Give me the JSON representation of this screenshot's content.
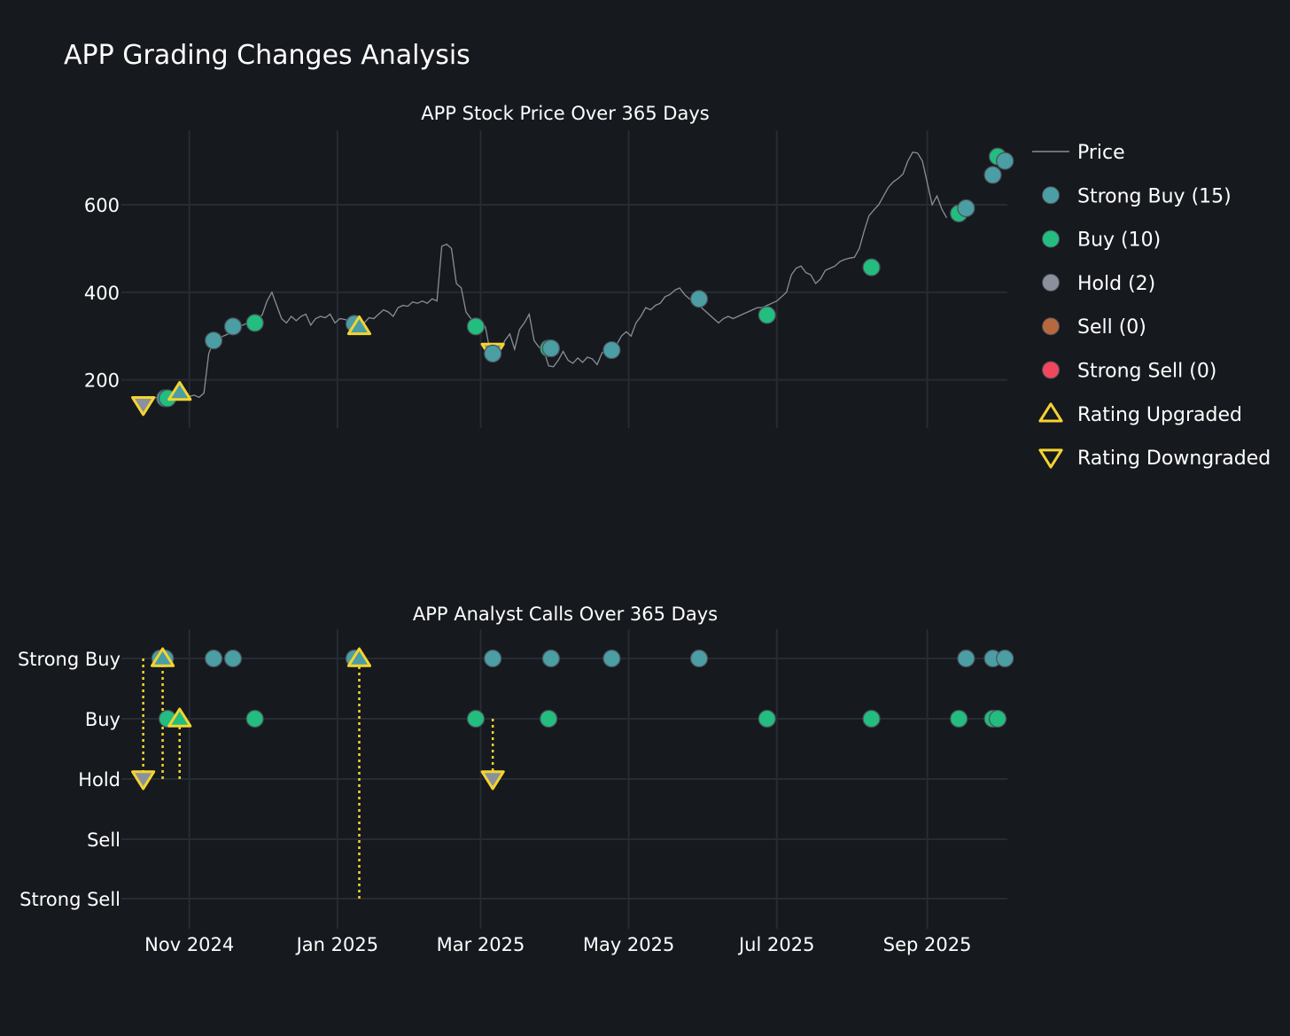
{
  "title": "APP Grading Changes Analysis",
  "colors": {
    "background": "#16191e",
    "grid": "#272c33",
    "price_line": "#8a8f96",
    "strong_buy": "#4a9ea4",
    "buy": "#22bd7f",
    "hold": "#8a919c",
    "sell": "#b8683d",
    "strong_sell": "#f0475c",
    "change_marker": "#f4d430",
    "marker_edge": "#4a4f57"
  },
  "legend": {
    "price": "Price",
    "strong_buy": "Strong Buy (15)",
    "buy": "Buy (10)",
    "hold": "Hold (2)",
    "sell": "Sell (0)",
    "strong_sell": "Strong Sell (0)",
    "upgraded": "Rating Upgraded",
    "downgraded": "Rating Downgraded"
  },
  "chart_data": [
    {
      "type": "line",
      "title": "APP Stock Price Over 365 Days",
      "ylabel": "",
      "ylim": [
        90,
        770
      ],
      "yticks": [
        200,
        400,
        600
      ],
      "x_range_days": [
        -28,
        337
      ],
      "x_ticks": [
        {
          "day": 0,
          "label": "Nov 2024"
        },
        {
          "day": 61,
          "label": "Jan 2025"
        },
        {
          "day": 120,
          "label": "Mar 2025"
        },
        {
          "day": 181,
          "label": "May 2025"
        },
        {
          "day": 242,
          "label": "Jul 2025"
        },
        {
          "day": 304,
          "label": "Sep 2025"
        }
      ],
      "price": [
        [
          -18,
          150
        ],
        [
          -15,
          158
        ],
        [
          -12,
          162
        ],
        [
          -10,
          160
        ],
        [
          -8,
          170
        ],
        [
          -5,
          168
        ],
        [
          -3,
          170
        ],
        [
          0,
          162
        ],
        [
          2,
          165
        ],
        [
          4,
          160
        ],
        [
          6,
          170
        ],
        [
          8,
          260
        ],
        [
          10,
          290
        ],
        [
          12,
          295
        ],
        [
          14,
          300
        ],
        [
          16,
          305
        ],
        [
          18,
          318
        ],
        [
          20,
          322
        ],
        [
          22,
          325
        ],
        [
          24,
          330
        ],
        [
          26,
          335
        ],
        [
          28,
          340
        ],
        [
          30,
          348
        ],
        [
          32,
          380
        ],
        [
          34,
          400
        ],
        [
          36,
          370
        ],
        [
          38,
          340
        ],
        [
          40,
          330
        ],
        [
          42,
          345
        ],
        [
          44,
          335
        ],
        [
          46,
          345
        ],
        [
          48,
          350
        ],
        [
          50,
          325
        ],
        [
          52,
          340
        ],
        [
          54,
          345
        ],
        [
          56,
          342
        ],
        [
          58,
          350
        ],
        [
          60,
          330
        ],
        [
          62,
          340
        ],
        [
          64,
          338
        ],
        [
          66,
          335
        ],
        [
          68,
          345
        ],
        [
          70,
          320
        ],
        [
          72,
          330
        ],
        [
          74,
          342
        ],
        [
          76,
          340
        ],
        [
          78,
          350
        ],
        [
          80,
          360
        ],
        [
          82,
          355
        ],
        [
          84,
          345
        ],
        [
          86,
          365
        ],
        [
          88,
          370
        ],
        [
          90,
          368
        ],
        [
          92,
          378
        ],
        [
          94,
          375
        ],
        [
          96,
          380
        ],
        [
          98,
          375
        ],
        [
          100,
          385
        ],
        [
          102,
          380
        ],
        [
          104,
          505
        ],
        [
          106,
          510
        ],
        [
          108,
          500
        ],
        [
          110,
          420
        ],
        [
          112,
          410
        ],
        [
          114,
          355
        ],
        [
          116,
          340
        ],
        [
          118,
          325
        ],
        [
          120,
          335
        ],
        [
          122,
          320
        ],
        [
          124,
          262
        ],
        [
          126,
          258
        ],
        [
          128,
          265
        ],
        [
          130,
          290
        ],
        [
          132,
          305
        ],
        [
          134,
          270
        ],
        [
          136,
          315
        ],
        [
          138,
          330
        ],
        [
          140,
          350
        ],
        [
          142,
          290
        ],
        [
          144,
          275
        ],
        [
          146,
          268
        ],
        [
          148,
          232
        ],
        [
          150,
          230
        ],
        [
          152,
          245
        ],
        [
          154,
          265
        ],
        [
          156,
          245
        ],
        [
          158,
          238
        ],
        [
          160,
          250
        ],
        [
          162,
          240
        ],
        [
          164,
          252
        ],
        [
          166,
          248
        ],
        [
          168,
          235
        ],
        [
          170,
          262
        ],
        [
          172,
          265
        ],
        [
          174,
          270
        ],
        [
          176,
          280
        ],
        [
          178,
          300
        ],
        [
          180,
          310
        ],
        [
          182,
          300
        ],
        [
          184,
          330
        ],
        [
          186,
          345
        ],
        [
          188,
          365
        ],
        [
          190,
          360
        ],
        [
          192,
          370
        ],
        [
          194,
          375
        ],
        [
          196,
          390
        ],
        [
          198,
          395
        ],
        [
          200,
          405
        ],
        [
          202,
          410
        ],
        [
          204,
          395
        ],
        [
          206,
          385
        ],
        [
          208,
          380
        ],
        [
          210,
          370
        ],
        [
          212,
          360
        ],
        [
          214,
          350
        ],
        [
          216,
          340
        ],
        [
          218,
          330
        ],
        [
          220,
          340
        ],
        [
          222,
          345
        ],
        [
          224,
          340
        ],
        [
          226,
          345
        ],
        [
          228,
          350
        ],
        [
          230,
          355
        ],
        [
          232,
          360
        ],
        [
          234,
          365
        ],
        [
          236,
          365
        ],
        [
          238,
          370
        ],
        [
          240,
          375
        ],
        [
          242,
          380
        ],
        [
          244,
          390
        ],
        [
          246,
          400
        ],
        [
          248,
          440
        ],
        [
          250,
          455
        ],
        [
          252,
          460
        ],
        [
          254,
          445
        ],
        [
          256,
          440
        ],
        [
          258,
          420
        ],
        [
          260,
          430
        ],
        [
          262,
          450
        ],
        [
          264,
          455
        ],
        [
          266,
          460
        ],
        [
          268,
          470
        ],
        [
          270,
          475
        ],
        [
          272,
          478
        ],
        [
          274,
          480
        ],
        [
          276,
          500
        ],
        [
          278,
          540
        ],
        [
          280,
          575
        ],
        [
          282,
          588
        ],
        [
          284,
          600
        ],
        [
          286,
          620
        ],
        [
          288,
          640
        ],
        [
          290,
          652
        ],
        [
          292,
          660
        ],
        [
          294,
          670
        ],
        [
          296,
          700
        ],
        [
          298,
          720
        ],
        [
          300,
          718
        ],
        [
          302,
          700
        ],
        [
          304,
          650
        ],
        [
          306,
          600
        ],
        [
          308,
          620
        ],
        [
          310,
          590
        ],
        [
          312,
          570
        ]
      ],
      "rating_points": [
        {
          "day": -10,
          "rating": "Strong Buy",
          "price": 158
        },
        {
          "day": -9,
          "rating": "Buy",
          "price": 158
        },
        {
          "day": 10,
          "rating": "Strong Buy",
          "price": 290
        },
        {
          "day": 18,
          "rating": "Strong Buy",
          "price": 322
        },
        {
          "day": 27,
          "rating": "Buy",
          "price": 330
        },
        {
          "day": 68,
          "rating": "Strong Buy",
          "price": 328
        },
        {
          "day": 118,
          "rating": "Buy",
          "price": 322
        },
        {
          "day": 125,
          "rating": "Strong Buy",
          "price": 260
        },
        {
          "day": 148,
          "rating": "Buy",
          "price": 272
        },
        {
          "day": 149,
          "rating": "Strong Buy",
          "price": 272
        },
        {
          "day": 174,
          "rating": "Strong Buy",
          "price": 268
        },
        {
          "day": 210,
          "rating": "Strong Buy",
          "price": 385
        },
        {
          "day": 238,
          "rating": "Buy",
          "price": 348
        },
        {
          "day": 281,
          "rating": "Buy",
          "price": 457
        },
        {
          "day": 317,
          "rating": "Buy",
          "price": 580
        },
        {
          "day": 320,
          "rating": "Strong Buy",
          "price": 592
        },
        {
          "day": 331,
          "rating": "Strong Buy",
          "price": 668
        },
        {
          "day": 333,
          "rating": "Buy",
          "price": 710
        },
        {
          "day": 336,
          "rating": "Strong Buy",
          "price": 700
        }
      ],
      "upgrades": [
        {
          "day": -4,
          "price": 172
        },
        {
          "day": 70,
          "price": 322
        }
      ],
      "downgrades": [
        {
          "day": -19,
          "price": 143
        },
        {
          "day": 125,
          "price": 265
        }
      ]
    },
    {
      "type": "scatter",
      "title": "APP Analyst Calls Over 365 Days",
      "categories": [
        "Strong Buy",
        "Buy",
        "Hold",
        "Sell",
        "Strong Sell"
      ],
      "category_levels": {
        "Strong Buy": 4,
        "Buy": 3,
        "Hold": 2,
        "Sell": 1,
        "Strong Sell": 0
      },
      "calls": [
        {
          "day": -12,
          "rating": "Strong Buy"
        },
        {
          "day": -10,
          "rating": "Strong Buy"
        },
        {
          "day": 10,
          "rating": "Strong Buy"
        },
        {
          "day": 18,
          "rating": "Strong Buy"
        },
        {
          "day": 68,
          "rating": "Strong Buy"
        },
        {
          "day": 125,
          "rating": "Strong Buy"
        },
        {
          "day": 149,
          "rating": "Strong Buy"
        },
        {
          "day": 174,
          "rating": "Strong Buy"
        },
        {
          "day": 210,
          "rating": "Strong Buy"
        },
        {
          "day": 320,
          "rating": "Strong Buy"
        },
        {
          "day": 331,
          "rating": "Strong Buy"
        },
        {
          "day": 336,
          "rating": "Strong Buy"
        },
        {
          "day": -9,
          "rating": "Buy"
        },
        {
          "day": 27,
          "rating": "Buy"
        },
        {
          "day": 118,
          "rating": "Buy"
        },
        {
          "day": 148,
          "rating": "Buy"
        },
        {
          "day": 238,
          "rating": "Buy"
        },
        {
          "day": 281,
          "rating": "Buy"
        },
        {
          "day": 317,
          "rating": "Buy"
        },
        {
          "day": 331,
          "rating": "Buy"
        },
        {
          "day": 333,
          "rating": "Buy"
        }
      ],
      "changes": [
        {
          "day": -19,
          "from": "Strong Buy",
          "to": "Hold",
          "direction": "down"
        },
        {
          "day": -11,
          "from": "Hold",
          "to": "Strong Buy",
          "direction": "up"
        },
        {
          "day": -4,
          "from": "Hold",
          "to": "Buy",
          "direction": "up"
        },
        {
          "day": 70,
          "from": "Strong Sell",
          "to": "Strong Buy",
          "direction": "up"
        },
        {
          "day": 125,
          "from": "Buy",
          "to": "Hold",
          "direction": "down"
        }
      ]
    }
  ]
}
